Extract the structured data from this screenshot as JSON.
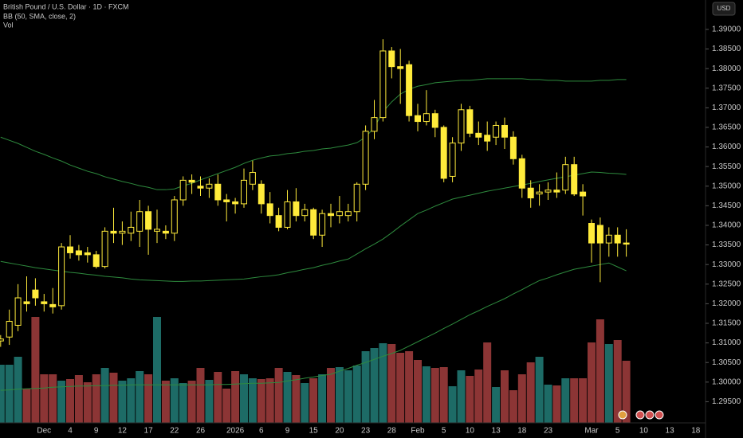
{
  "chart_data": {
    "type": "candlestick",
    "title": "British Pound / U.S. Dollar · 1D · FXCM",
    "indicator_label": "BB (50, SMA, close, 2)",
    "volume_label": "Vol",
    "currency_button": "USD",
    "categories": [
      null,
      null,
      null,
      null,
      null,
      "Dec",
      null,
      null,
      "4",
      null,
      null,
      "9",
      null,
      null,
      "12",
      null,
      null,
      "17",
      null,
      null,
      "22",
      null,
      null,
      "26",
      null,
      null,
      null,
      "2026",
      null,
      null,
      "6",
      null,
      null,
      "9",
      null,
      null,
      "15",
      null,
      null,
      "20",
      null,
      null,
      "23",
      null,
      null,
      "28",
      null,
      null,
      "Feb",
      null,
      null,
      "5",
      null,
      null,
      "10",
      null,
      null,
      "13",
      null,
      null,
      "18",
      null,
      null,
      "23",
      null,
      null,
      null,
      null,
      "Mar",
      null,
      null,
      "5",
      null,
      null,
      "10",
      null,
      null,
      "13",
      null,
      null,
      "18"
    ],
    "open": [
      1.3105,
      1.3115,
      1.3145,
      1.3205,
      1.3235,
      1.3205,
      1.3198,
      1.3195,
      1.3345,
      1.3335,
      1.333,
      1.3325,
      1.3295,
      1.3385,
      1.338,
      1.338,
      1.3385,
      1.3435,
      1.3385,
      1.3385,
      1.338,
      1.3465,
      1.3515,
      1.35,
      1.3495,
      1.3505,
      1.3465,
      1.346,
      1.3455,
      1.3505,
      1.3505,
      1.3455,
      1.3425,
      1.3395,
      1.346,
      1.3425,
      1.344,
      1.3375,
      1.343,
      1.3425,
      1.3425,
      1.3435,
      1.3505,
      1.364,
      1.3675,
      1.3845,
      1.3805,
      1.381,
      1.368,
      1.3665,
      1.3685,
      1.365,
      1.3525,
      1.361,
      1.3695,
      1.3635,
      1.363,
      1.3625,
      1.3655,
      1.3625,
      1.357,
      1.3495,
      1.348,
      1.3485,
      1.349,
      1.349,
      1.3555,
      1.3485,
      1.3405,
      1.34,
      1.3355,
      1.3375,
      1.3355,
      null,
      null,
      null,
      null,
      null,
      null,
      null,
      null
    ],
    "high": [
      1.312,
      1.3185,
      1.325,
      1.327,
      1.3265,
      1.3225,
      1.324,
      1.3355,
      1.3375,
      1.335,
      1.3345,
      1.3335,
      1.3395,
      1.3445,
      1.341,
      1.3435,
      1.3465,
      1.345,
      1.344,
      1.34,
      1.3475,
      1.3525,
      1.353,
      1.3525,
      1.352,
      1.353,
      1.348,
      1.347,
      1.3545,
      1.3565,
      1.3515,
      1.3485,
      1.3445,
      1.349,
      1.3495,
      1.3455,
      1.3445,
      1.344,
      1.3455,
      1.3475,
      1.3455,
      1.351,
      1.3655,
      1.372,
      1.3875,
      1.3855,
      1.385,
      1.382,
      1.371,
      1.3745,
      1.3695,
      1.3655,
      1.3625,
      1.371,
      1.3705,
      1.3665,
      1.3665,
      1.3665,
      1.3675,
      1.364,
      1.358,
      1.3515,
      1.3505,
      1.351,
      1.3535,
      1.3575,
      1.3575,
      1.3505,
      1.3415,
      1.342,
      1.3395,
      1.3395,
      1.339,
      null,
      null,
      null,
      null,
      null,
      null,
      null,
      null
    ],
    "low": [
      1.309,
      1.3095,
      1.313,
      1.318,
      1.3195,
      1.318,
      1.3175,
      1.3185,
      1.3315,
      1.331,
      1.3305,
      1.329,
      1.329,
      1.3355,
      1.335,
      1.336,
      1.3345,
      1.3325,
      1.3355,
      1.3365,
      1.336,
      1.345,
      1.348,
      1.3475,
      1.347,
      1.345,
      1.341,
      1.343,
      1.3445,
      1.349,
      1.343,
      1.3405,
      1.3385,
      1.339,
      1.341,
      1.341,
      1.3365,
      1.3345,
      1.3395,
      1.3405,
      1.341,
      1.341,
      1.349,
      1.362,
      1.3665,
      1.3775,
      1.371,
      1.3665,
      1.364,
      1.3655,
      1.3625,
      1.351,
      1.351,
      1.359,
      1.3625,
      1.3605,
      1.359,
      1.3605,
      1.3595,
      1.3555,
      1.347,
      1.3445,
      1.345,
      1.3465,
      1.347,
      1.348,
      1.3475,
      1.3425,
      1.3305,
      1.3255,
      1.332,
      1.332,
      1.332,
      null,
      null,
      null,
      null,
      null,
      null,
      null,
      null
    ],
    "close": [
      1.311,
      1.3155,
      1.3215,
      1.32,
      1.3215,
      1.32,
      1.3192,
      1.3345,
      1.333,
      1.3325,
      1.3325,
      1.3295,
      1.3385,
      1.338,
      1.3385,
      1.3395,
      1.3435,
      1.339,
      1.339,
      1.338,
      1.3465,
      1.3515,
      1.351,
      1.3495,
      1.3505,
      1.3465,
      1.346,
      1.3455,
      1.3515,
      1.3535,
      1.3455,
      1.3425,
      1.3395,
      1.346,
      1.3425,
      1.344,
      1.3375,
      1.343,
      1.3425,
      1.3435,
      1.3435,
      1.3505,
      1.364,
      1.3675,
      1.3845,
      1.3805,
      1.38,
      1.368,
      1.3665,
      1.3685,
      1.365,
      1.352,
      1.361,
      1.3695,
      1.3635,
      1.3625,
      1.3615,
      1.3655,
      1.3625,
      1.357,
      1.3495,
      1.347,
      1.3485,
      1.349,
      1.3485,
      1.3555,
      1.348,
      1.3475,
      1.3355,
      1.3355,
      1.3375,
      1.3355,
      1.3352,
      null,
      null,
      null,
      null,
      null,
      null,
      null,
      null
    ],
    "volume": [
      73,
      73,
      83,
      43,
      133,
      61,
      61,
      53,
      55,
      60,
      51,
      61,
      69,
      63,
      53,
      56,
      65,
      61,
      133,
      53,
      56,
      50,
      53,
      69,
      54,
      64,
      43,
      65,
      61,
      56,
      55,
      56,
      69,
      64,
      60,
      50,
      56,
      61,
      69,
      70,
      66,
      72,
      90,
      94,
      100,
      99,
      88,
      90,
      79,
      71,
      69,
      70,
      46,
      66,
      59,
      67,
      101,
      45,
      66,
      41,
      61,
      76,
      83,
      48,
      47,
      56,
      56,
      56,
      101,
      130,
      99,
      104,
      78,
      null,
      null,
      null,
      null,
      null,
      null,
      null,
      null
    ],
    "bands": [
      {
        "color": "#2e8b3e",
        "values": [
          1.3625,
          1.3617,
          1.3609,
          1.3599,
          1.3589,
          1.3581,
          1.3572,
          1.3564,
          1.3554,
          1.3546,
          1.3538,
          1.3532,
          1.3524,
          1.3518,
          1.3512,
          1.3507,
          1.3501,
          1.3497,
          1.3491,
          1.3491,
          1.3493,
          1.3501,
          1.3507,
          1.3516,
          1.3524,
          1.3532,
          1.354,
          1.3548,
          1.3558,
          1.3566,
          1.3572,
          1.3577,
          1.3579,
          1.3583,
          1.3585,
          1.3589,
          1.3591,
          1.3595,
          1.3597,
          1.3601,
          1.3605,
          1.3611,
          1.3625,
          1.365,
          1.369,
          1.3715,
          1.3735,
          1.3747,
          1.3755,
          1.3759,
          1.3764,
          1.3766,
          1.3768,
          1.377,
          1.377,
          1.3772,
          1.3774,
          1.3774,
          1.3774,
          1.3774,
          1.3774,
          1.3772,
          1.3772,
          1.377,
          1.377,
          1.3768,
          1.3768,
          1.3768,
          1.3768,
          1.377,
          1.377,
          1.3772,
          1.3772,
          null,
          null,
          null,
          null,
          null,
          null,
          null,
          null
        ]
      },
      {
        "color": "#2e8b3e",
        "values": [
          1.3308,
          1.3304,
          1.33,
          1.3296,
          1.3292,
          1.3289,
          1.3286,
          1.3283,
          1.328,
          1.3278,
          1.3275,
          1.3273,
          1.327,
          1.3268,
          1.3266,
          1.3263,
          1.3261,
          1.326,
          1.3259,
          1.3258,
          1.3257,
          1.3257,
          1.3258,
          1.3258,
          1.3259,
          1.326,
          1.3261,
          1.3262,
          1.3263,
          1.3266,
          1.3269,
          1.3271,
          1.3274,
          1.3279,
          1.3283,
          1.3288,
          1.3292,
          1.3298,
          1.3303,
          1.3309,
          1.3314,
          1.3327,
          1.334,
          1.3352,
          1.3365,
          1.3381,
          1.3398,
          1.3414,
          1.343,
          1.3439,
          1.3449,
          1.3458,
          1.3467,
          1.3472,
          1.3477,
          1.3482,
          1.3487,
          1.3491,
          1.3495,
          1.3499,
          1.3503,
          1.3507,
          1.3512,
          1.3516,
          1.352,
          1.3524,
          1.3528,
          1.3532,
          1.3536,
          1.3535,
          1.3533,
          1.3532,
          1.353,
          null,
          null,
          null,
          null,
          null,
          null,
          null,
          null
        ]
      },
      {
        "color": "#2e8b3e",
        "values": [
          1.2979,
          1.298,
          1.2982,
          1.2983,
          1.2984,
          1.2985,
          1.2987,
          1.2988,
          1.2989,
          1.299,
          1.299,
          1.2991,
          1.2991,
          1.2992,
          1.2992,
          1.2993,
          1.2993,
          1.2993,
          1.2993,
          1.2993,
          1.2993,
          1.2993,
          1.2993,
          1.2993,
          1.2993,
          1.2994,
          1.2994,
          1.2995,
          1.2996,
          1.2997,
          1.2997,
          1.2998,
          1.2999,
          1.3003,
          1.3006,
          1.301,
          1.3013,
          1.3017,
          1.302,
          1.3028,
          1.3035,
          1.3043,
          1.305,
          1.3058,
          1.3066,
          1.3073,
          1.3081,
          1.3092,
          1.3103,
          1.3114,
          1.3125,
          1.3137,
          1.3148,
          1.316,
          1.3172,
          1.3182,
          1.3193,
          1.3203,
          1.3213,
          1.3225,
          1.3236,
          1.3248,
          1.3259,
          1.3266,
          1.3274,
          1.3281,
          1.3288,
          1.3292,
          1.3296,
          1.33,
          1.3304,
          1.3294,
          1.3284,
          null,
          null,
          null,
          null,
          null,
          null,
          null,
          null
        ]
      }
    ],
    "up_color": "#ffeb3b",
    "up_fill": "#000000",
    "down_color": "#ffeb3b",
    "volume_up_color": "#1d6b66",
    "volume_down_color": "#8c3535",
    "ylim": [
      1.2896,
      1.3975
    ],
    "yticks": [
      {
        "value": 1.295,
        "label": "1.29500"
      },
      {
        "value": 1.3,
        "label": "1.30000"
      },
      {
        "value": 1.305,
        "label": "1.30500"
      },
      {
        "value": 1.31,
        "label": "1.31000"
      },
      {
        "value": 1.315,
        "label": "1.31500"
      },
      {
        "value": 1.32,
        "label": "1.32000"
      },
      {
        "value": 1.325,
        "label": "1.32500"
      },
      {
        "value": 1.33,
        "label": "1.33000"
      },
      {
        "value": 1.335,
        "label": "1.33500"
      },
      {
        "value": 1.34,
        "label": "1.34000"
      },
      {
        "value": 1.345,
        "label": "1.34500"
      },
      {
        "value": 1.35,
        "label": "1.35000"
      },
      {
        "value": 1.355,
        "label": "1.35500"
      },
      {
        "value": 1.36,
        "label": "1.36000"
      },
      {
        "value": 1.365,
        "label": "1.36500"
      },
      {
        "value": 1.37,
        "label": "1.37000"
      },
      {
        "value": 1.375,
        "label": "1.37500"
      },
      {
        "value": 1.38,
        "label": "1.38000"
      },
      {
        "value": 1.385,
        "label": "1.38500"
      },
      {
        "value": 1.39,
        "label": "1.39000"
      }
    ],
    "grid": false
  }
}
